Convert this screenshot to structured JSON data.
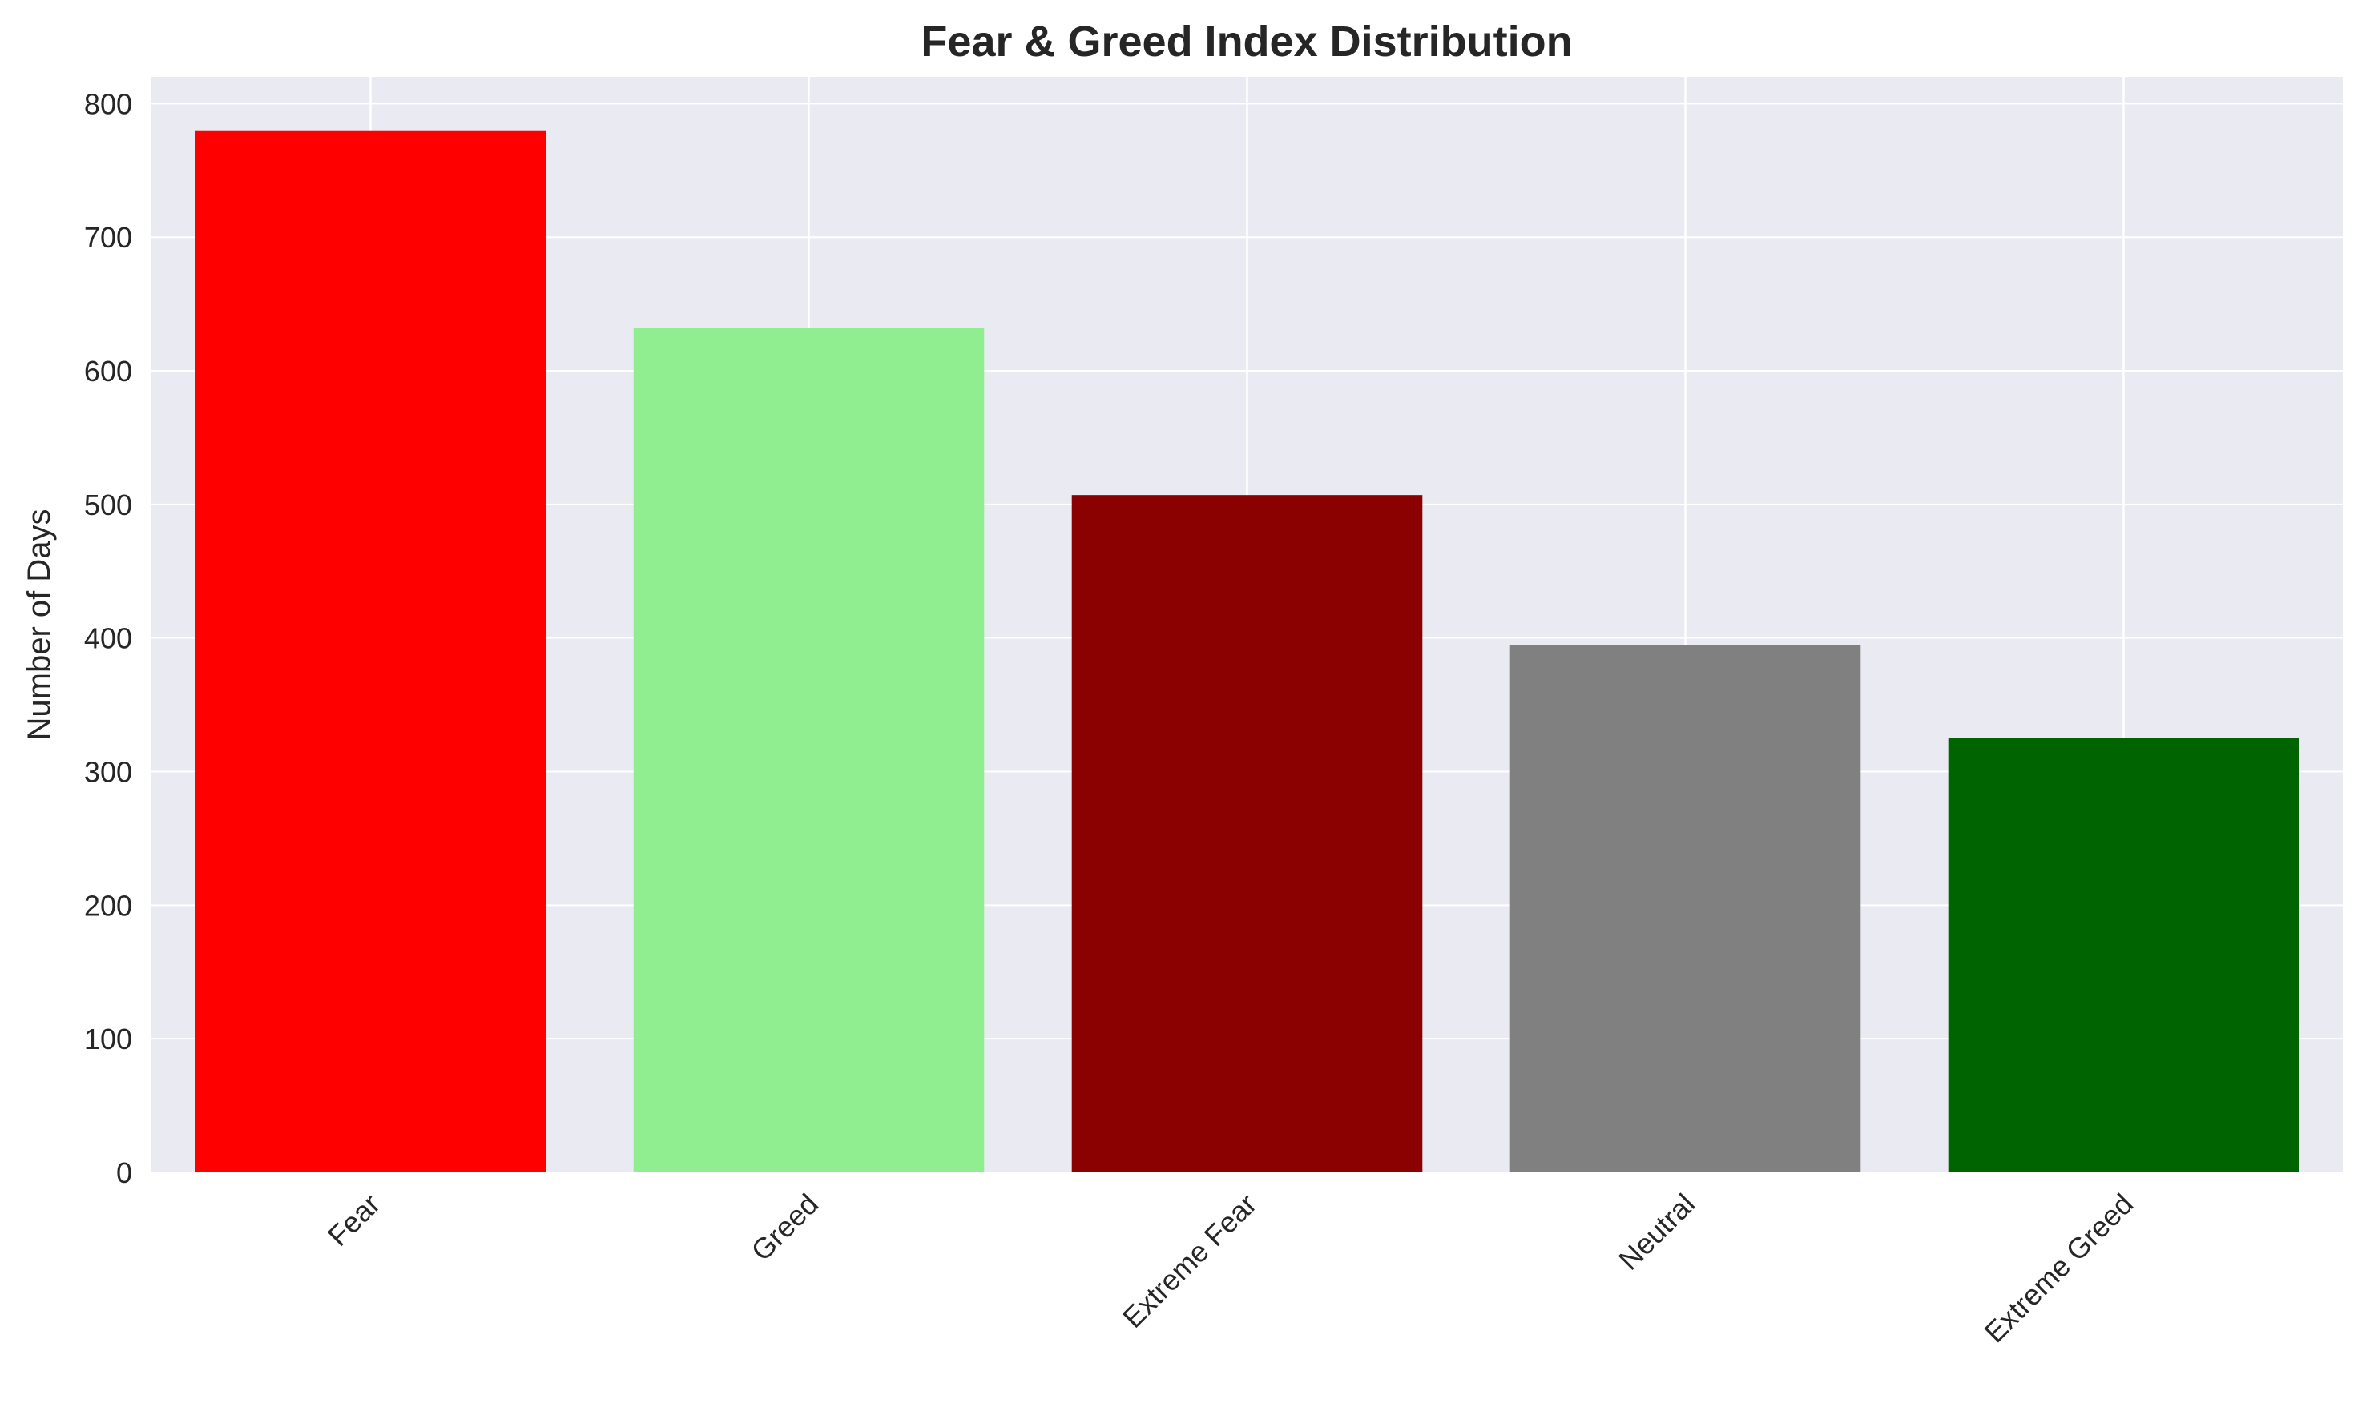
{
  "chart_data": {
    "type": "bar",
    "title": "Fear & Greed Index Distribution",
    "xlabel": "",
    "ylabel": "Number of Days",
    "categories": [
      "Fear",
      "Greed",
      "Extreme Fear",
      "Neutral",
      "Extreme Greed"
    ],
    "values": [
      780,
      632,
      507,
      395,
      325
    ],
    "bar_colors": [
      "#ff0000",
      "#90ee90",
      "#8b0000",
      "#808080",
      "#006400"
    ],
    "ylim": [
      0,
      820
    ],
    "yticks": [
      0,
      100,
      200,
      300,
      400,
      500,
      600,
      700,
      800
    ],
    "x_tick_rotation_deg": 45,
    "grid": true,
    "background_color": "#eaeaf2",
    "grid_color": "#ffffff"
  }
}
